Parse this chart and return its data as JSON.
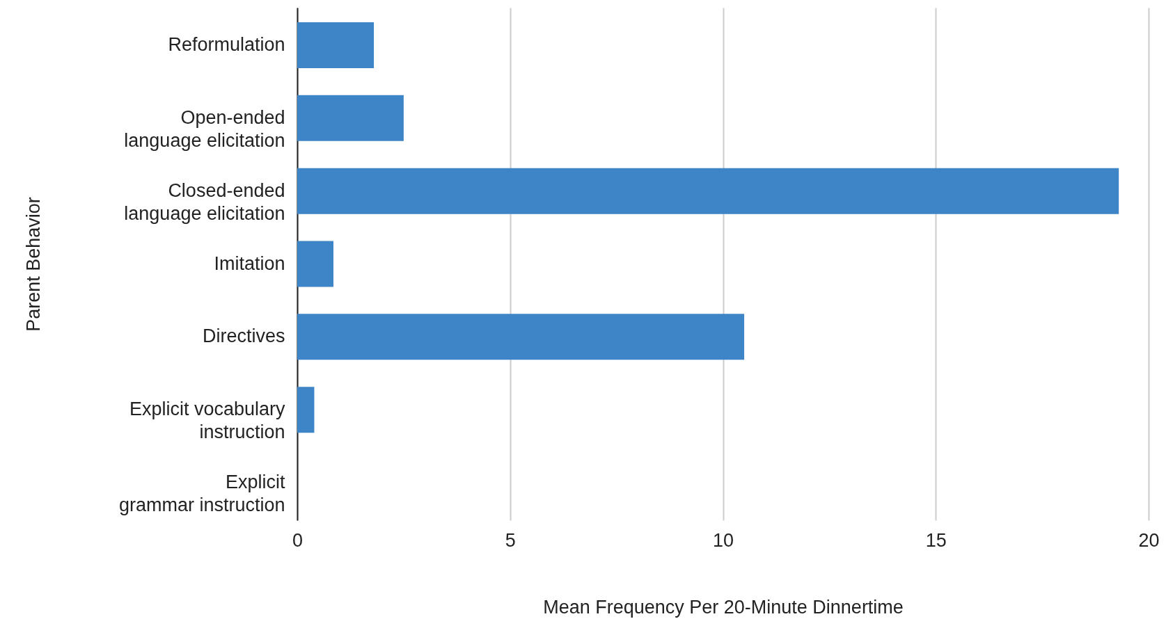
{
  "chart_data": {
    "type": "bar",
    "orientation": "horizontal",
    "xlabel": "Mean Frequency Per 20-Minute Dinnertime",
    "ylabel": "Parent Behavior",
    "categories": [
      "Reformulation",
      "Open-ended language elicitation",
      "Closed-ended language elicitation",
      "Imitation",
      "Directives",
      "Explicit vocabulary instruction",
      "Explicit grammar instruction"
    ],
    "values": [
      1.8,
      2.5,
      19.3,
      0.85,
      10.5,
      0.4,
      0
    ],
    "color": "#3d85c6",
    "xlim": [
      0,
      20
    ],
    "xticks": [
      0,
      5,
      10,
      15,
      20
    ],
    "grid": "x"
  }
}
